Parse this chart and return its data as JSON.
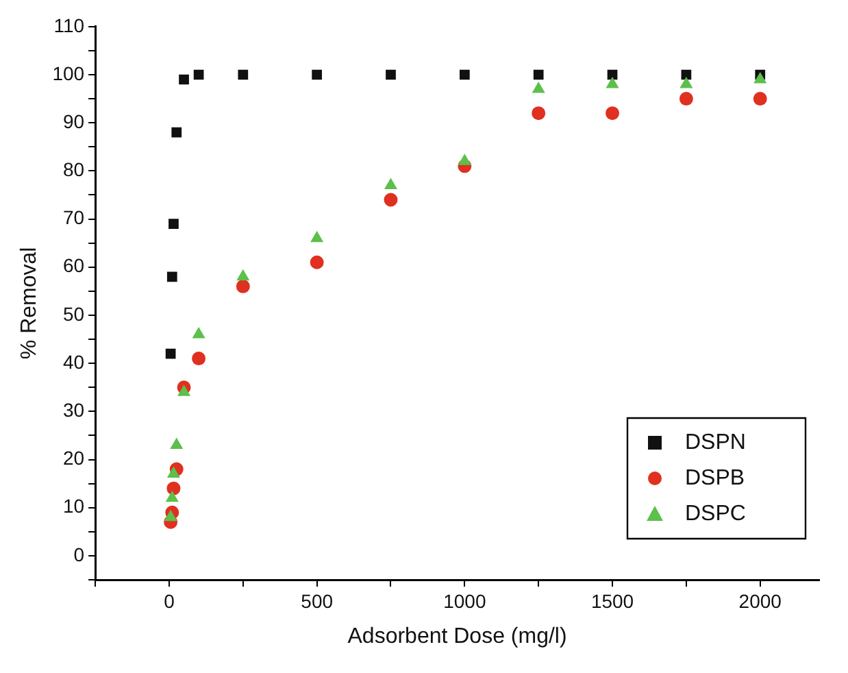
{
  "chart_data": {
    "type": "scatter",
    "xlabel": "Adsorbent Dose (mg/l)",
    "ylabel": "% Removal",
    "xlim": [
      -250,
      2200
    ],
    "ylim": [
      -5,
      110
    ],
    "xticks": [
      {
        "value": -250,
        "label": null
      },
      0,
      {
        "value": 250,
        "label": null
      },
      500,
      {
        "value": 750,
        "label": null
      },
      1000,
      {
        "value": 1250,
        "label": null
      },
      1500,
      {
        "value": 1750,
        "label": null
      },
      2000
    ],
    "yticks": [
      {
        "value": -5,
        "label": null
      },
      0,
      {
        "value": 5,
        "label": null
      },
      10,
      {
        "value": 15,
        "label": null
      },
      20,
      {
        "value": 25,
        "label": null
      },
      30,
      {
        "value": 35,
        "label": null
      },
      40,
      {
        "value": 45,
        "label": null
      },
      50,
      {
        "value": 55,
        "label": null
      },
      60,
      {
        "value": 65,
        "label": null
      },
      70,
      {
        "value": 75,
        "label": null
      },
      80,
      {
        "value": 85,
        "label": null
      },
      90,
      {
        "value": 95,
        "label": null
      },
      100,
      {
        "value": 105,
        "label": null
      },
      110
    ],
    "grid": false,
    "legend": "bottom right",
    "x": [
      5,
      10,
      15,
      25,
      50,
      100,
      250,
      500,
      750,
      1000,
      1250,
      1500,
      1750,
      2000
    ],
    "series": [
      {
        "name": "DSPN",
        "color": "#111111",
        "marker": "square",
        "values": [
          42,
          58,
          69,
          88,
          99,
          100,
          100,
          100,
          100,
          100,
          100,
          100,
          100,
          100
        ]
      },
      {
        "name": "DSPB",
        "color": "#e03020",
        "marker": "circle",
        "values": [
          7,
          9,
          14,
          18,
          35,
          41,
          56,
          61,
          74,
          81,
          92,
          92,
          95,
          95
        ]
      },
      {
        "name": "DSPC",
        "color": "#5cc04a",
        "marker": "triangle",
        "values": [
          8,
          12,
          17,
          23,
          34,
          46,
          58,
          66,
          77,
          82,
          97,
          98,
          98,
          99
        ]
      }
    ]
  }
}
